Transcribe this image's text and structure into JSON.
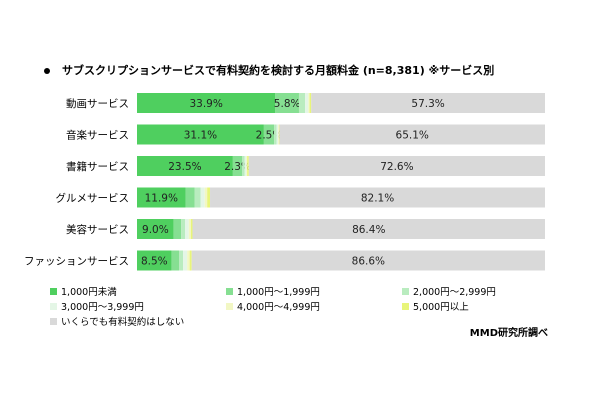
{
  "title": "サブスクリプションサービスで有料契約を検討する月額料金 (n=8,381) ※サービス別",
  "source": "MMD研究所調べ",
  "chart_data": {
    "type": "bar",
    "orientation": "horizontal",
    "stacked": true,
    "title": "サブスクリプションサービスで有料契約を検討する月額料金 (n=8,381) ※サービス別",
    "categories": [
      "動画サービス",
      "音楽サービス",
      "書籍サービス",
      "グルメサービス",
      "美容サービス",
      "ファッションサービス"
    ],
    "xlim": [
      0,
      100
    ],
    "grid": false,
    "legend_position": "bottom",
    "series": [
      {
        "name": "1,000円未満",
        "color": "#4fcf5f",
        "values": [
          33.9,
          31.1,
          23.5,
          11.9,
          9.0,
          8.5
        ]
      },
      {
        "name": "1,000円～1,999円",
        "color": "#86df92",
        "values": [
          5.8,
          2.5,
          2.3,
          2.2,
          1.8,
          1.8
        ]
      },
      {
        "name": "2,000円～2,999円",
        "color": "#b9ecbf",
        "values": [
          1.5,
          0.6,
          0.6,
          1.5,
          1.0,
          1.0
        ]
      },
      {
        "name": "3,000円～3,999円",
        "color": "#e4f6e6",
        "values": [
          0.8,
          0.4,
          0.4,
          1.0,
          0.9,
          1.0
        ]
      },
      {
        "name": "4,000円～4,999円",
        "color": "#f2f7c4",
        "values": [
          0.3,
          0.2,
          0.2,
          0.6,
          0.5,
          0.6
        ]
      },
      {
        "name": "5,000円以上",
        "color": "#e8f57a",
        "values": [
          0.4,
          0.1,
          0.4,
          0.7,
          0.4,
          0.5
        ]
      },
      {
        "name": "いくらでも有料契約はしない",
        "color": "#d9d9d9",
        "values": [
          57.3,
          65.1,
          72.6,
          82.1,
          86.4,
          86.6
        ]
      }
    ],
    "data_labels": [
      [
        "33.9%",
        "5.8%",
        "",
        "",
        "",
        "",
        "57.3%"
      ],
      [
        "31.1%",
        "2.5%",
        "",
        "",
        "",
        "",
        "65.1%"
      ],
      [
        "23.5%",
        "2.3%",
        "",
        "",
        "",
        "",
        "72.6%"
      ],
      [
        "11.9%",
        "",
        "",
        "",
        "",
        "",
        "82.1%"
      ],
      [
        "9.0%",
        "",
        "",
        "",
        "",
        "",
        "86.4%"
      ],
      [
        "8.5%",
        "",
        "",
        "",
        "",
        "",
        "86.6%"
      ]
    ]
  }
}
